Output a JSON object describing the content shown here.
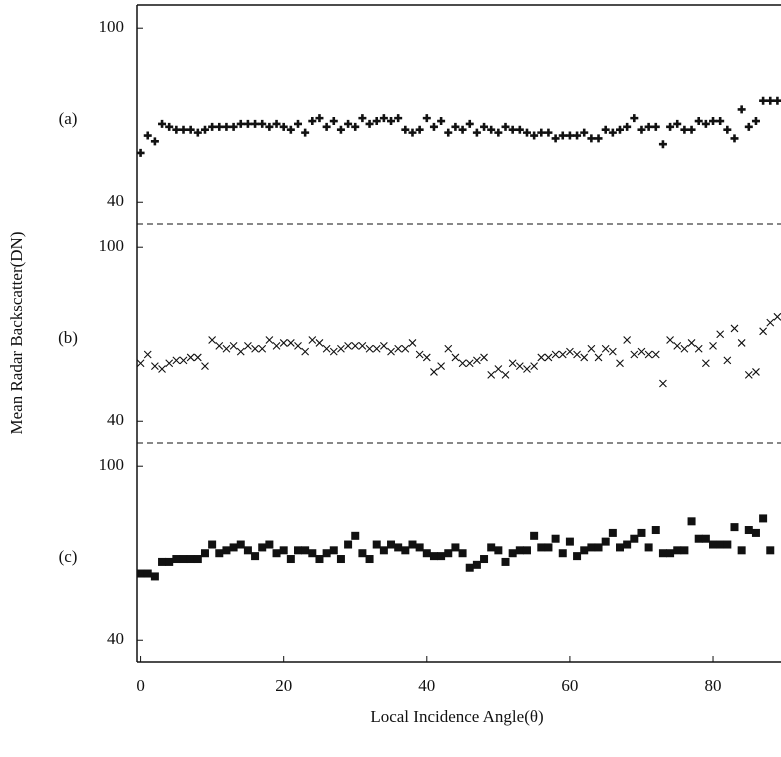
{
  "y_label": "Mean Radar Backscatter(DN)",
  "x_label": "Local Incidence Angle(θ)",
  "chart_data": [
    {
      "type": "scatter",
      "label": "(a)",
      "marker": "plus",
      "color": "#111111",
      "xlim": [
        -0.5,
        89.5
      ],
      "ylim": [
        32.5,
        108
      ],
      "yticks": [
        40,
        100
      ],
      "x": [
        0,
        1,
        2,
        3,
        4,
        5,
        6,
        7,
        8,
        9,
        10,
        11,
        12,
        13,
        14,
        15,
        16,
        17,
        18,
        19,
        20,
        21,
        22,
        23,
        24,
        25,
        26,
        27,
        28,
        29,
        30,
        31,
        32,
        33,
        34,
        35,
        36,
        37,
        38,
        39,
        40,
        41,
        42,
        43,
        44,
        45,
        46,
        47,
        48,
        49,
        50,
        51,
        52,
        53,
        54,
        55,
        56,
        57,
        58,
        59,
        60,
        61,
        62,
        63,
        64,
        65,
        66,
        67,
        68,
        69,
        70,
        71,
        72,
        73,
        74,
        75,
        76,
        77,
        78,
        79,
        80,
        81,
        82,
        83,
        84,
        85,
        86,
        87,
        88,
        89
      ],
      "values": [
        57,
        63,
        61,
        67,
        66,
        65,
        65,
        65,
        64,
        65,
        66,
        66,
        66,
        66,
        67,
        67,
        67,
        67,
        66,
        67,
        66,
        65,
        67,
        64,
        68,
        69,
        66,
        68,
        65,
        67,
        66,
        69,
        67,
        68,
        69,
        68,
        69,
        65,
        64,
        65,
        69,
        66,
        68,
        64,
        66,
        65,
        67,
        64,
        66,
        65,
        64,
        66,
        65,
        65,
        64,
        63,
        64,
        64,
        62,
        63,
        63,
        63,
        64,
        62,
        62,
        65,
        64,
        65,
        66,
        69,
        65,
        66,
        66,
        60,
        66,
        67,
        65,
        65,
        68,
        67,
        68,
        68,
        65,
        62,
        72,
        66,
        68,
        75,
        75,
        75
      ]
    },
    {
      "type": "scatter",
      "label": "(b)",
      "marker": "x",
      "color": "#111111",
      "xlim": [
        -0.5,
        89.5
      ],
      "ylim": [
        32.5,
        108
      ],
      "yticks": [
        40,
        100
      ],
      "x": [
        0,
        1,
        2,
        3,
        4,
        5,
        6,
        7,
        8,
        9,
        10,
        11,
        12,
        13,
        14,
        15,
        16,
        17,
        18,
        19,
        20,
        21,
        22,
        23,
        24,
        25,
        26,
        27,
        28,
        29,
        30,
        31,
        32,
        33,
        34,
        35,
        36,
        37,
        38,
        39,
        40,
        41,
        42,
        43,
        44,
        45,
        46,
        47,
        48,
        49,
        50,
        51,
        52,
        53,
        54,
        55,
        56,
        57,
        58,
        59,
        60,
        61,
        62,
        63,
        64,
        65,
        66,
        67,
        68,
        69,
        70,
        71,
        72,
        73,
        74,
        75,
        76,
        77,
        78,
        79,
        80,
        81,
        82,
        83,
        84,
        85,
        86,
        87,
        88,
        89
      ],
      "values": [
        60,
        63,
        59,
        58,
        60,
        61,
        61,
        62,
        62,
        59,
        68,
        66,
        65,
        66,
        64,
        66,
        65,
        65,
        68,
        66,
        67,
        67,
        66,
        64,
        68,
        67,
        65,
        64,
        65,
        66,
        66,
        66,
        65,
        65,
        66,
        64,
        65,
        65,
        67,
        63,
        62,
        57,
        59,
        65,
        62,
        60,
        60,
        61,
        62,
        56,
        58,
        56,
        60,
        59,
        58,
        59,
        62,
        62,
        63,
        63,
        64,
        63,
        62,
        65,
        62,
        65,
        64,
        60,
        68,
        63,
        64,
        63,
        63,
        53,
        68,
        66,
        65,
        67,
        65,
        60,
        66,
        70,
        61,
        72,
        67,
        56,
        57,
        71,
        74,
        76
      ]
    },
    {
      "type": "scatter",
      "label": "(c)",
      "marker": "square",
      "color": "#111111",
      "xlim": [
        -0.5,
        89.5
      ],
      "ylim": [
        32.5,
        108
      ],
      "yticks": [
        40,
        100
      ],
      "xticks": [
        0,
        20,
        40,
        60,
        80
      ],
      "x": [
        0,
        1,
        2,
        3,
        4,
        5,
        6,
        7,
        8,
        9,
        10,
        11,
        12,
        13,
        14,
        15,
        16,
        17,
        18,
        19,
        20,
        21,
        22,
        23,
        24,
        25,
        26,
        27,
        28,
        29,
        30,
        31,
        32,
        33,
        34,
        35,
        36,
        37,
        38,
        39,
        40,
        41,
        42,
        43,
        44,
        45,
        46,
        47,
        48,
        49,
        50,
        51,
        52,
        53,
        54,
        55,
        56,
        57,
        58,
        59,
        60,
        61,
        62,
        63,
        64,
        65,
        66,
        67,
        68,
        69,
        70,
        71,
        72,
        73,
        74,
        75,
        76,
        77,
        78,
        79,
        80,
        81,
        82,
        83,
        84,
        85,
        86,
        87,
        88
      ],
      "values": [
        63,
        63,
        62,
        67,
        67,
        68,
        68,
        68,
        68,
        70,
        73,
        70,
        71,
        72,
        73,
        71,
        69,
        72,
        73,
        70,
        71,
        68,
        71,
        71,
        70,
        68,
        70,
        71,
        68,
        73,
        76,
        70,
        68,
        73,
        71,
        73,
        72,
        71,
        73,
        72,
        70,
        69,
        69,
        70,
        72,
        70,
        65,
        66,
        68,
        72,
        71,
        67,
        70,
        71,
        71,
        76,
        72,
        72,
        75,
        70,
        74,
        69,
        71,
        72,
        72,
        74,
        77,
        72,
        73,
        75,
        77,
        72,
        78,
        70,
        70,
        71,
        71,
        81,
        75,
        75,
        73,
        73,
        73,
        79,
        71,
        78,
        77,
        82,
        71
      ]
    }
  ]
}
